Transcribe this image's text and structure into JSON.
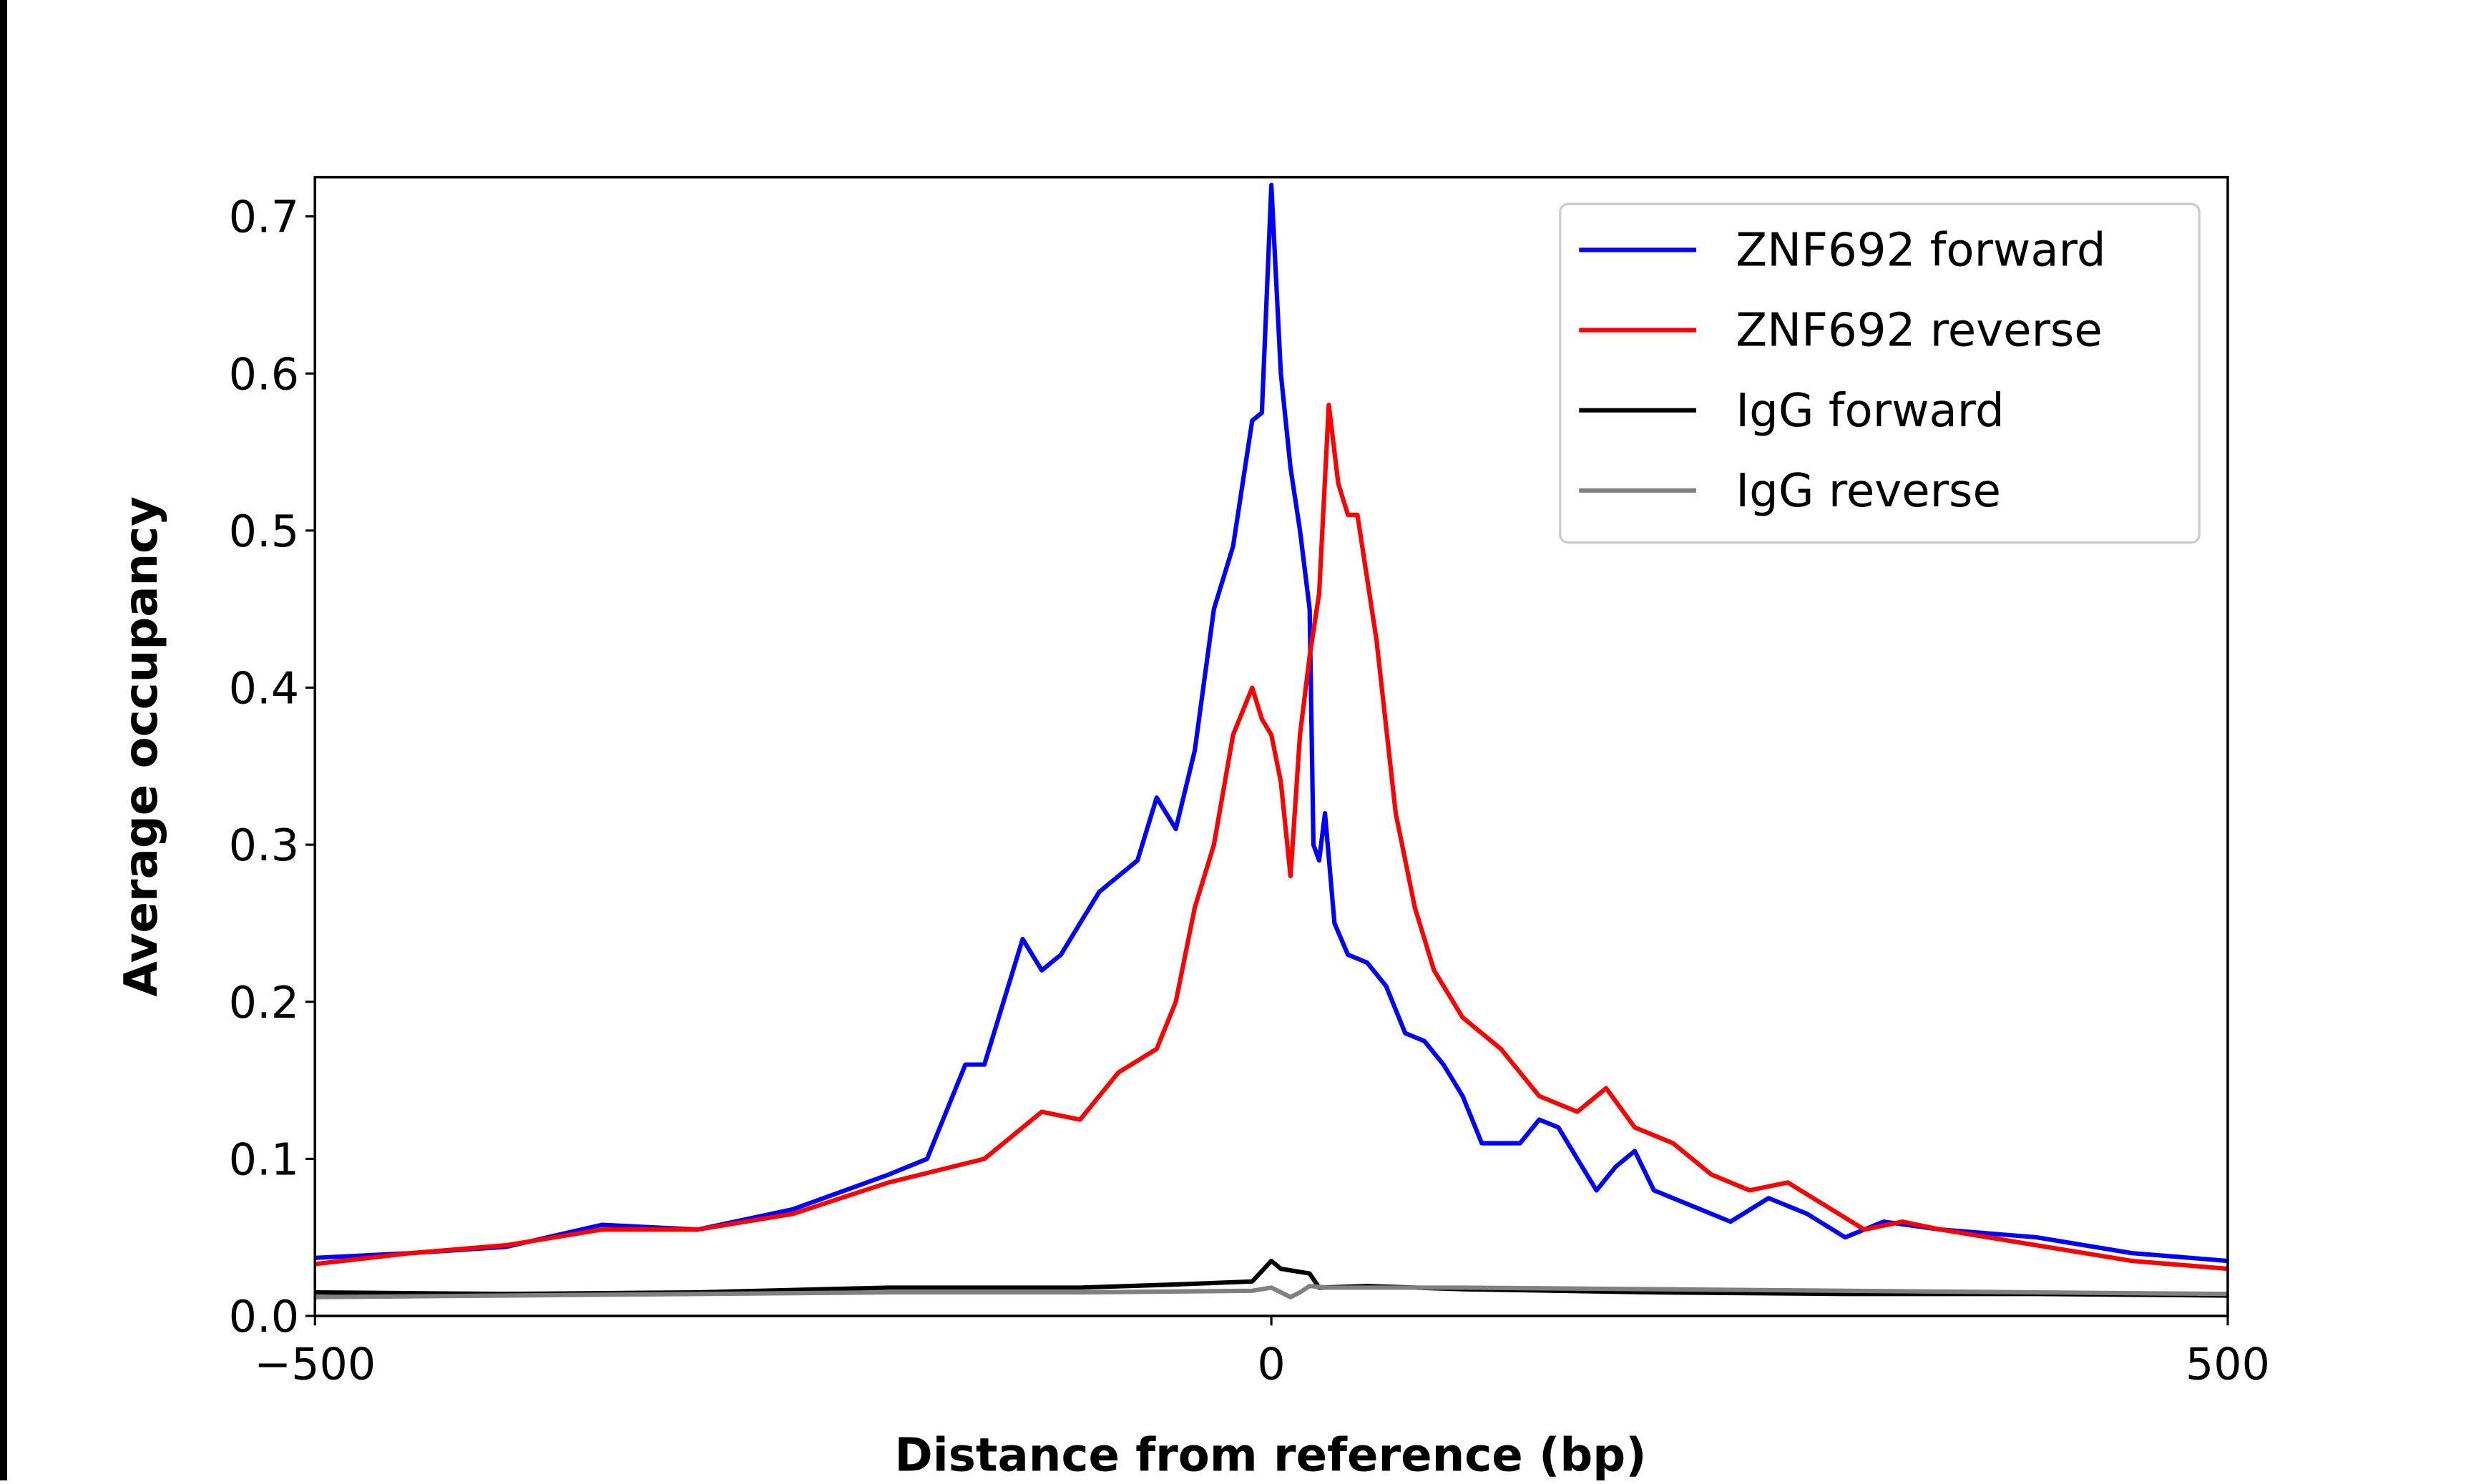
{
  "chart_data": {
    "type": "line",
    "title": "",
    "xlabel": "Distance from reference (bp)",
    "ylabel": "Average occupancy",
    "xlim": [
      -500,
      500
    ],
    "ylim": [
      0,
      0.725
    ],
    "xticks": [
      -500,
      0,
      500
    ],
    "xtick_labels": [
      "−500",
      "0",
      "500"
    ],
    "yticks": [
      0.0,
      0.1,
      0.2,
      0.3,
      0.4,
      0.5,
      0.6,
      0.7
    ],
    "ytick_labels": [
      "0.0",
      "0.1",
      "0.2",
      "0.3",
      "0.4",
      "0.5",
      "0.6",
      "0.7"
    ],
    "grid": false,
    "legend_position": "top-right",
    "series": [
      {
        "name": "ZNF692 forward",
        "color": "#0000ff",
        "x": [
          -500,
          -450,
          -400,
          -350,
          -300,
          -250,
          -200,
          -180,
          -170,
          -160,
          -150,
          -140,
          -130,
          -120,
          -110,
          -100,
          -90,
          -80,
          -70,
          -60,
          -50,
          -40,
          -30,
          -20,
          -10,
          -5,
          0,
          5,
          10,
          15,
          20,
          22,
          25,
          28,
          33,
          40,
          50,
          60,
          70,
          80,
          90,
          100,
          110,
          120,
          130,
          140,
          150,
          160,
          170,
          180,
          190,
          200,
          220,
          240,
          260,
          280,
          300,
          320,
          350,
          400,
          450,
          500
        ],
        "y": [
          0.037,
          0.04,
          0.044,
          0.058,
          0.055,
          0.068,
          0.09,
          0.1,
          0.13,
          0.16,
          0.16,
          0.2,
          0.24,
          0.22,
          0.23,
          0.25,
          0.27,
          0.28,
          0.29,
          0.33,
          0.31,
          0.36,
          0.45,
          0.49,
          0.57,
          0.575,
          0.72,
          0.6,
          0.54,
          0.5,
          0.45,
          0.3,
          0.29,
          0.32,
          0.25,
          0.23,
          0.225,
          0.21,
          0.18,
          0.175,
          0.16,
          0.14,
          0.11,
          0.11,
          0.11,
          0.125,
          0.12,
          0.1,
          0.08,
          0.095,
          0.105,
          0.08,
          0.07,
          0.06,
          0.075,
          0.065,
          0.05,
          0.06,
          0.055,
          0.05,
          0.04,
          0.035
        ]
      },
      {
        "name": "ZNF692 reverse",
        "color": "#ff0000",
        "x": [
          -500,
          -450,
          -400,
          -350,
          -300,
          -250,
          -200,
          -150,
          -120,
          -100,
          -80,
          -60,
          -50,
          -40,
          -30,
          -20,
          -10,
          -5,
          0,
          5,
          10,
          15,
          20,
          25,
          30,
          35,
          40,
          45,
          55,
          65,
          75,
          85,
          100,
          120,
          140,
          160,
          175,
          190,
          210,
          230,
          250,
          270,
          290,
          310,
          330,
          350,
          400,
          450,
          500
        ],
        "y": [
          0.033,
          0.04,
          0.045,
          0.055,
          0.055,
          0.065,
          0.085,
          0.1,
          0.13,
          0.125,
          0.155,
          0.17,
          0.2,
          0.26,
          0.3,
          0.37,
          0.4,
          0.38,
          0.37,
          0.34,
          0.28,
          0.37,
          0.42,
          0.46,
          0.58,
          0.53,
          0.51,
          0.51,
          0.43,
          0.32,
          0.26,
          0.22,
          0.19,
          0.17,
          0.14,
          0.13,
          0.145,
          0.12,
          0.11,
          0.09,
          0.08,
          0.085,
          0.07,
          0.055,
          0.06,
          0.055,
          0.045,
          0.035,
          0.03
        ]
      },
      {
        "name": "IgG forward",
        "color": "#000000",
        "x": [
          -500,
          -400,
          -300,
          -200,
          -100,
          -50,
          -10,
          0,
          5,
          20,
          25,
          50,
          100,
          200,
          300,
          400,
          500
        ],
        "y": [
          0.015,
          0.014,
          0.015,
          0.018,
          0.018,
          0.02,
          0.022,
          0.035,
          0.03,
          0.027,
          0.018,
          0.019,
          0.017,
          0.015,
          0.014,
          0.014,
          0.013
        ]
      },
      {
        "name": "IgG reverse",
        "color": "#808080",
        "x": [
          -500,
          -400,
          -300,
          -200,
          -100,
          -10,
          0,
          10,
          15,
          20,
          30,
          100,
          200,
          300,
          400,
          500
        ],
        "y": [
          0.012,
          0.013,
          0.014,
          0.015,
          0.015,
          0.016,
          0.018,
          0.012,
          0.015,
          0.019,
          0.018,
          0.018,
          0.017,
          0.016,
          0.015,
          0.014
        ]
      }
    ]
  }
}
